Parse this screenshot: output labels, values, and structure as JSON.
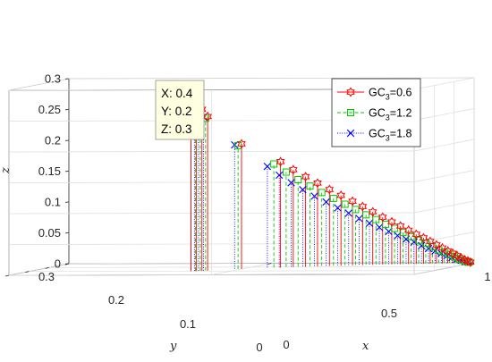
{
  "chart_data": {
    "type": "stem3",
    "title": "",
    "xlabel": "x",
    "ylabel": "y",
    "zlabel": "z",
    "xlim": [
      0,
      1
    ],
    "ylim": [
      0,
      0.3
    ],
    "zlim": [
      0,
      0.3
    ],
    "xticks": [
      "0",
      "0.5",
      "1"
    ],
    "yticks": [
      "0",
      "0.1",
      "0.2",
      "0.3"
    ],
    "zticks": [
      "0",
      "0.05",
      "0.1",
      "0.15",
      "0.2",
      "0.25",
      "0.3"
    ],
    "grid": true,
    "legend_position": "top-right",
    "series": [
      {
        "name": "GC",
        "sub": "3",
        "suffix": "=0.6",
        "color": "#ff0000",
        "line": "solid",
        "marker": "hexagram",
        "points": [
          [
            0.4,
            0.2,
            0.29
          ],
          [
            0.413,
            0.199,
            0.274
          ],
          [
            0.425,
            0.196,
            0.262
          ],
          [
            0.437,
            0.192,
            0.25
          ],
          [
            0.5,
            0.15,
            0.203
          ],
          [
            0.58,
            0.117,
            0.172
          ],
          [
            0.605,
            0.104,
            0.158
          ],
          [
            0.63,
            0.093,
            0.146
          ],
          [
            0.655,
            0.084,
            0.135
          ],
          [
            0.68,
            0.075,
            0.124
          ],
          [
            0.705,
            0.068,
            0.114
          ],
          [
            0.73,
            0.061,
            0.104
          ],
          [
            0.752,
            0.055,
            0.095
          ],
          [
            0.774,
            0.049,
            0.086
          ],
          [
            0.796,
            0.044,
            0.077
          ],
          [
            0.816,
            0.039,
            0.069
          ],
          [
            0.835,
            0.034,
            0.062
          ],
          [
            0.853,
            0.03,
            0.055
          ],
          [
            0.87,
            0.026,
            0.048
          ],
          [
            0.886,
            0.022,
            0.042
          ],
          [
            0.901,
            0.019,
            0.036
          ],
          [
            0.915,
            0.016,
            0.03
          ],
          [
            0.928,
            0.013,
            0.025
          ],
          [
            0.94,
            0.01,
            0.02
          ],
          [
            0.951,
            0.008,
            0.016
          ],
          [
            0.961,
            0.006,
            0.012
          ],
          [
            0.97,
            0.004,
            0.008
          ],
          [
            0.978,
            0.002,
            0.005
          ],
          [
            0.985,
            0.001,
            0.003
          ],
          [
            0.991,
            0.0005,
            0.001
          ]
        ]
      },
      {
        "name": "GC",
        "sub": "3",
        "suffix": "=1.2",
        "color": "#00cc00",
        "line": "dashed",
        "marker": "square",
        "points": [
          [
            0.4,
            0.2,
            0.286
          ],
          [
            0.41,
            0.198,
            0.27
          ],
          [
            0.42,
            0.194,
            0.258
          ],
          [
            0.431,
            0.19,
            0.247
          ],
          [
            0.49,
            0.147,
            0.2
          ],
          [
            0.562,
            0.114,
            0.168
          ],
          [
            0.586,
            0.101,
            0.154
          ],
          [
            0.61,
            0.09,
            0.141
          ],
          [
            0.635,
            0.081,
            0.13
          ],
          [
            0.66,
            0.073,
            0.119
          ],
          [
            0.685,
            0.065,
            0.109
          ],
          [
            0.71,
            0.058,
            0.099
          ],
          [
            0.733,
            0.052,
            0.09
          ],
          [
            0.756,
            0.046,
            0.081
          ],
          [
            0.778,
            0.041,
            0.073
          ],
          [
            0.799,
            0.036,
            0.065
          ],
          [
            0.819,
            0.031,
            0.058
          ],
          [
            0.838,
            0.027,
            0.051
          ],
          [
            0.856,
            0.023,
            0.044
          ],
          [
            0.873,
            0.02,
            0.038
          ],
          [
            0.889,
            0.017,
            0.033
          ],
          [
            0.904,
            0.014,
            0.027
          ],
          [
            0.918,
            0.011,
            0.022
          ],
          [
            0.931,
            0.009,
            0.018
          ],
          [
            0.943,
            0.007,
            0.014
          ],
          [
            0.954,
            0.005,
            0.01
          ],
          [
            0.964,
            0.003,
            0.007
          ],
          [
            0.973,
            0.002,
            0.004
          ],
          [
            0.981,
            0.001,
            0.002
          ],
          [
            0.988,
            0.0005,
            0.001
          ]
        ]
      },
      {
        "name": "GC",
        "sub": "3",
        "suffix": "=1.8",
        "color": "#0000ff",
        "line": "dotted",
        "marker": "x",
        "points": [
          [
            0.4,
            0.2,
            0.29
          ],
          [
            0.407,
            0.197,
            0.274
          ],
          [
            0.415,
            0.193,
            0.261
          ],
          [
            0.425,
            0.188,
            0.249
          ],
          [
            0.48,
            0.144,
            0.201
          ],
          [
            0.545,
            0.112,
            0.164
          ],
          [
            0.568,
            0.099,
            0.149
          ],
          [
            0.592,
            0.088,
            0.136
          ],
          [
            0.616,
            0.079,
            0.124
          ],
          [
            0.641,
            0.071,
            0.113
          ],
          [
            0.666,
            0.063,
            0.103
          ],
          [
            0.691,
            0.056,
            0.093
          ],
          [
            0.715,
            0.05,
            0.084
          ],
          [
            0.738,
            0.044,
            0.075
          ],
          [
            0.761,
            0.039,
            0.067
          ],
          [
            0.783,
            0.034,
            0.06
          ],
          [
            0.804,
            0.03,
            0.053
          ],
          [
            0.824,
            0.026,
            0.046
          ],
          [
            0.843,
            0.022,
            0.04
          ],
          [
            0.861,
            0.019,
            0.035
          ],
          [
            0.878,
            0.016,
            0.029
          ],
          [
            0.894,
            0.013,
            0.024
          ],
          [
            0.909,
            0.011,
            0.02
          ],
          [
            0.923,
            0.008,
            0.016
          ],
          [
            0.936,
            0.006,
            0.012
          ],
          [
            0.948,
            0.005,
            0.009
          ],
          [
            0.959,
            0.003,
            0.006
          ],
          [
            0.969,
            0.002,
            0.004
          ],
          [
            0.978,
            0.001,
            0.002
          ],
          [
            0.986,
            0.0005,
            0.001
          ]
        ]
      }
    ],
    "datatip": {
      "point": [
        0.4,
        0.2,
        0.3
      ],
      "lines": [
        "X: 0.4",
        "Y: 0.2",
        "Z: 0.3"
      ]
    }
  }
}
